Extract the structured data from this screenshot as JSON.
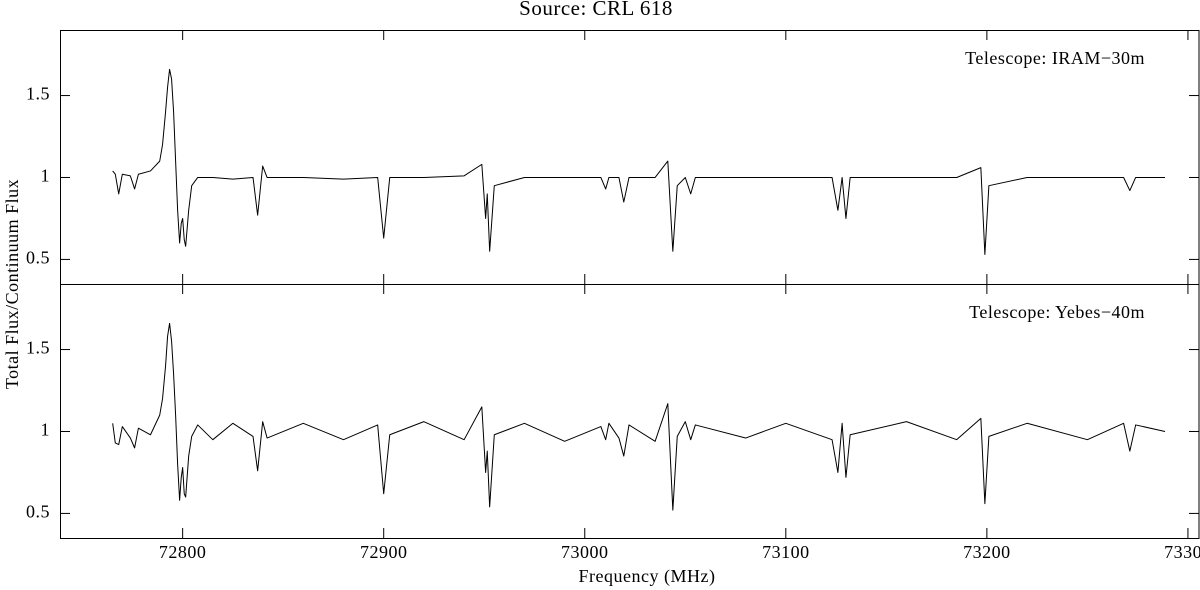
{
  "chart_data": {
    "type": "line",
    "title": "Source: CRL 618",
    "xlabel": "Frequency (MHz)",
    "ylabel": "Total Flux/Continuum Flux",
    "xlim": [
      72739,
      73306
    ],
    "xticks": [
      72800,
      72900,
      73000,
      73100,
      73200,
      73300
    ],
    "panels": [
      {
        "annotation": "Telescope: IRAM−30m",
        "ylim": [
          0.35,
          1.9
        ],
        "yticks": [
          0.5,
          1,
          1.5
        ],
        "color": "#000000",
        "x": [
          72765.2,
          72766.5,
          72768.2,
          72770,
          72774,
          72776.1,
          72778,
          72784,
          72788.6,
          72790,
          72791.5,
          72792.5,
          72793.5,
          72794.5,
          72795.5,
          72796.5,
          72797.5,
          72798.5,
          72799.3,
          72800,
          72800.8,
          72801.5,
          72803,
          72804.5,
          72807.5,
          72815,
          72825,
          72835,
          72837.3,
          72839.8,
          72842,
          72860,
          72880,
          72897,
          72900,
          72903,
          72920,
          72940,
          72948.8,
          72950.7,
          72951.5,
          72952.7,
          72955,
          72970,
          72990,
          73008,
          73010.4,
          73012,
          73017,
          73019.4,
          73022,
          73035,
          73041.3,
          73043.8,
          73046,
          73050,
          73052.7,
          73055,
          73080,
          73100,
          73123,
          73125.9,
          73128,
          73129.9,
          73132,
          73160,
          73185,
          73197,
          73199,
          73201,
          73220,
          73250,
          73268,
          73271.1,
          73274,
          73288.6
        ],
        "values": [
          1.04,
          1.02,
          0.9,
          1.02,
          1.01,
          0.93,
          1.02,
          1.04,
          1.1,
          1.2,
          1.4,
          1.55,
          1.66,
          1.6,
          1.4,
          1.1,
          0.8,
          0.6,
          0.72,
          0.75,
          0.62,
          0.58,
          0.8,
          0.95,
          1.0,
          1.0,
          0.99,
          1.0,
          0.77,
          1.07,
          1.0,
          1.0,
          0.99,
          1.0,
          0.63,
          1.0,
          1.0,
          1.01,
          1.08,
          0.75,
          0.9,
          0.55,
          0.95,
          1.0,
          1.0,
          1.0,
          0.93,
          1.0,
          1.0,
          0.85,
          1.0,
          1.0,
          1.1,
          0.55,
          0.95,
          1.0,
          0.9,
          1.0,
          1.0,
          1.0,
          1.0,
          0.8,
          1.0,
          0.75,
          1.0,
          1.0,
          1.0,
          1.06,
          0.53,
          0.95,
          1.0,
          1.0,
          1.0,
          0.92,
          1.0,
          1.0
        ]
      },
      {
        "annotation": "Telescope: Yebes−40m",
        "ylim": [
          0.35,
          1.9
        ],
        "yticks": [
          0.5,
          1,
          1.5
        ],
        "color": "#000000",
        "x": [
          72765.2,
          72766.5,
          72768.2,
          72770,
          72774,
          72776.1,
          72778,
          72784,
          72788.6,
          72790,
          72791.5,
          72792.5,
          72793.5,
          72794.5,
          72795.5,
          72796.5,
          72797.5,
          72798.5,
          72799.3,
          72800,
          72800.8,
          72801.5,
          72803,
          72804.5,
          72807.5,
          72815,
          72825,
          72835,
          72837.3,
          72839.8,
          72842,
          72860,
          72880,
          72897,
          72900,
          72903,
          72920,
          72940,
          72948.8,
          72950.7,
          72951.5,
          72952.7,
          72955,
          72970,
          72990,
          73008,
          73010.4,
          73012,
          73017,
          73019.4,
          73022,
          73035,
          73041.3,
          73043.8,
          73046,
          73050,
          73052.7,
          73055,
          73080,
          73100,
          73123,
          73125.9,
          73128,
          73129.9,
          73132,
          73160,
          73185,
          73197,
          73199,
          73201,
          73220,
          73250,
          73268,
          73271.1,
          73274,
          73288.6
        ],
        "values": [
          1.05,
          0.93,
          0.92,
          1.03,
          0.96,
          0.9,
          1.02,
          0.98,
          1.1,
          1.2,
          1.4,
          1.58,
          1.66,
          1.55,
          1.35,
          1.1,
          0.8,
          0.58,
          0.72,
          0.78,
          0.62,
          0.6,
          0.85,
          0.97,
          1.04,
          0.95,
          1.05,
          0.97,
          0.76,
          1.06,
          0.96,
          1.05,
          0.95,
          1.04,
          0.62,
          0.98,
          1.06,
          0.95,
          1.15,
          0.75,
          0.88,
          0.54,
          0.98,
          1.05,
          0.94,
          1.03,
          0.95,
          1.05,
          0.96,
          0.85,
          1.04,
          0.94,
          1.17,
          0.52,
          0.97,
          1.06,
          0.95,
          1.04,
          0.96,
          1.05,
          0.95,
          0.75,
          1.05,
          0.72,
          0.98,
          1.06,
          0.95,
          1.08,
          0.56,
          0.97,
          1.05,
          0.95,
          1.05,
          0.88,
          1.04,
          1.0
        ]
      }
    ]
  }
}
